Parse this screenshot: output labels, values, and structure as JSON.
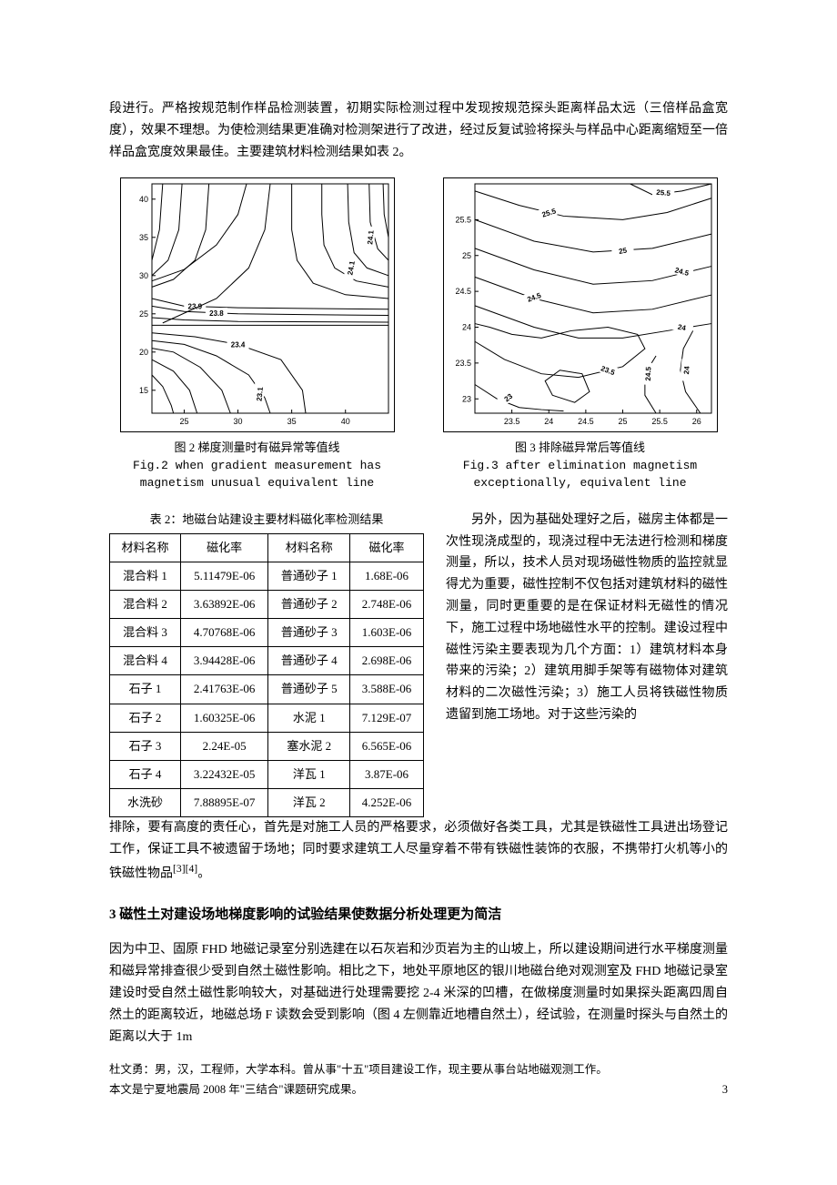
{
  "intro_para": "段进行。严格按规范制作样品检测装置，初期实际检测过程中发现按规范探头距离样品太远（三倍样品盒宽度），效果不理想。为使检测结果更准确对检测架进行了改进，经过反复试验将探头与样品中心距离缩短至一倍样品盒宽度效果最佳。主要建筑材料检测结果如表 2。",
  "fig2": {
    "caption_cn": "图 2 梯度测量时有磁异常等值线",
    "caption_en1": "Fig.2 when gradient measurement has",
    "caption_en2": "magnetism unusual equivalent line",
    "xlim": [
      22,
      44
    ],
    "ylim": [
      12,
      42
    ],
    "xticks": [
      25,
      30,
      35,
      40
    ],
    "yticks": [
      15,
      20,
      25,
      30,
      35,
      40
    ],
    "axis_fontsize": 9,
    "contour_color": "#000000",
    "labels": [
      "23.9",
      "23.8",
      "23.4",
      "23.1",
      "24.1",
      "24.1"
    ]
  },
  "fig3": {
    "caption_cn": "图 3 排除磁异常后等值线",
    "caption_en1": "Fig.3 after elimination magnetism",
    "caption_en2": "exceptionally, equivalent line",
    "xlim": [
      23,
      26.2
    ],
    "ylim": [
      22.8,
      26
    ],
    "xticks": [
      23.5,
      24,
      24.5,
      25,
      25.5,
      26
    ],
    "yticks": [
      23,
      23.5,
      24,
      24.5,
      25,
      25.5
    ],
    "axis_fontsize": 9,
    "contour_color": "#000000",
    "labels": [
      "25.5",
      "25.5",
      "25",
      "24.5",
      "24.5",
      "24",
      "23.5",
      "23",
      "24.5",
      "24",
      "24"
    ]
  },
  "table": {
    "caption": "表 2：地磁台站建设主要材料磁化率检测结果",
    "headers": [
      "材料名称",
      "磁化率",
      "材料名称",
      "磁化率"
    ],
    "rows": [
      [
        "混合料 1",
        "5.11479E-06",
        "普通砂子 1",
        "1.68E-06"
      ],
      [
        "混合料 2",
        "3.63892E-06",
        "普通砂子 2",
        "2.748E-06"
      ],
      [
        "混合料 3",
        "4.70768E-06",
        "普通砂子 3",
        "1.603E-06"
      ],
      [
        "混合料 4",
        "3.94428E-06",
        "普通砂子 4",
        "2.698E-06"
      ],
      [
        "石子 1",
        "2.41763E-06",
        "普通砂子 5",
        "3.588E-06"
      ],
      [
        "石子 2",
        "1.60325E-06",
        "水泥 1",
        "7.129E-07"
      ],
      [
        "石子 3",
        "2.24E-05",
        "塞水泥 2",
        "6.565E-06"
      ],
      [
        "石子 4",
        "3.22432E-05",
        "洋瓦 1",
        "3.87E-06"
      ],
      [
        "水洗砂",
        "7.88895E-07",
        "洋瓦 2",
        "4.252E-06"
      ]
    ]
  },
  "side_para": "另外，因为基础处理好之后，磁房主体都是一次性现浇成型的，现浇过程中无法进行检测和梯度测量，所以，技术人员对现场磁性物质的监控就显得尤为重要，磁性控制不仅包括对建筑材料的磁性测量，同时更重要的是在保证材料无磁性的情况下，施工过程中场地磁性水平的控制。建设过程中磁性污染主要表现为几个方面：1）建筑材料本身带来的污染；2）建筑用脚手架等有磁物体对建筑材料的二次磁性污染；3）施工人员将铁磁性物质遗留到施工场地。对于这些污染的",
  "after_para": "排除，要有高度的责任心，首先是对施工人员的严格要求，必须做好各类工具，尤其是铁磁性工具进出场登记工作，保证工具不被遗留于场地；同时要求建筑工人尽量穿着不带有铁磁性装饰的衣服，不携带打火机等小的铁磁性物品",
  "ref_sup": "[3][4]",
  "after_tail": "。",
  "section3_title": "3 磁性土对建设场地梯度影响的试验结果使数据分析处理更为简洁",
  "body3": "因为中卫、固原 FHD 地磁记录室分别选建在以石灰岩和沙页岩为主的山坡上，所以建设期间进行水平梯度测量和磁异常排查很少受到自然土磁性影响。相比之下，地处平原地区的银川地磁台绝对观测室及 FHD 地磁记录室建设时受自然土磁性影响较大，对基础进行处理需要挖 2-4 米深的凹槽，在做梯度测量时如果探头距离四周自然土的距离较近，地磁总场 F 读数会受到影响（图 4 左侧靠近地槽自然土），经试验，在测量时探头与自然土的距离以大于 1m",
  "footer1": "杜文勇：男，汉，工程师，大学本科。曾从事\"十五\"项目建设工作，现主要从事台站地磁观测工作。",
  "footer2": "本文是宁夏地震局 2008 年\"三结合\"课题研究成果。",
  "page_number": "3"
}
